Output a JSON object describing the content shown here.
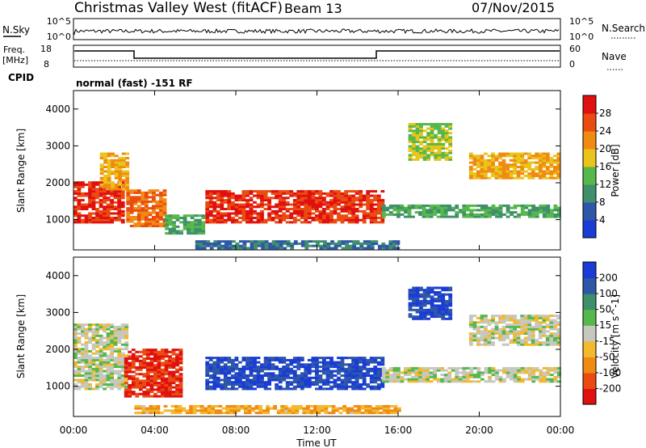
{
  "header": {
    "title": "Christmas Valley West (fitACF)",
    "beam": "Beam 13",
    "date": "07/Nov/2015"
  },
  "strips": {
    "nsky_label": "N.Sky",
    "nsearch_label": "N.Search",
    "nsky_ticks": [
      "10^5",
      "10^0"
    ],
    "freq_label": "Freq.",
    "freq_unit": "[MHz]",
    "freq_ticks": [
      "18",
      "8"
    ],
    "nave_label": "Nave",
    "nave_ticks": [
      "60",
      "0"
    ],
    "cpid_label": "CPID",
    "cpid_text": "normal (fast) -151 RF"
  },
  "colors": {
    "power": [
      "#1a3cd6",
      "#2e57a8",
      "#3f8f6b",
      "#56b84a",
      "#e9c41b",
      "#f08a12",
      "#ea4b10",
      "#e01010"
    ],
    "velocity": [
      "#e01010",
      "#ea4b10",
      "#f08a12",
      "#f3b92c",
      "#c7c7c0",
      "#56b84a",
      "#3f8f6b",
      "#2e57a8",
      "#1a3cd6"
    ]
  },
  "chart_data": [
    {
      "type": "heatmap",
      "panel": "power",
      "xlabel": "",
      "ylabel": "Slant Range [km]",
      "xlim_hours": [
        0,
        24
      ],
      "ylim": [
        180,
        4500
      ],
      "y_ticks": [
        "1000",
        "2000",
        "3000",
        "4000"
      ],
      "colorbar_label": "Power [dB]",
      "colorbar_ticks": [
        "4",
        "8",
        "12",
        "16",
        "20",
        "24",
        "28"
      ],
      "echo_regions": [
        {
          "t0": 0.0,
          "t1": 2.5,
          "r0": 900,
          "r1": 2000,
          "level": 28
        },
        {
          "t0": 1.3,
          "t1": 2.6,
          "r0": 1800,
          "r1": 2800,
          "level": 20
        },
        {
          "t0": 2.6,
          "t1": 4.5,
          "r0": 800,
          "r1": 1800,
          "level": 24
        },
        {
          "t0": 4.5,
          "t1": 6.3,
          "r0": 600,
          "r1": 1100,
          "level": 12
        },
        {
          "t0": 6.5,
          "t1": 15.2,
          "r0": 900,
          "r1": 1750,
          "level": 28
        },
        {
          "t0": 15.2,
          "t1": 24.0,
          "r0": 1050,
          "r1": 1400,
          "level": 12
        },
        {
          "t0": 16.5,
          "t1": 18.5,
          "r0": 2600,
          "r1": 3600,
          "level": 16
        },
        {
          "t0": 19.5,
          "t1": 23.9,
          "r0": 2100,
          "r1": 2800,
          "level": 20
        },
        {
          "t0": 6.0,
          "t1": 16.0,
          "r0": 200,
          "r1": 400,
          "level": 8
        }
      ]
    },
    {
      "type": "heatmap",
      "panel": "velocity",
      "xlabel": "Time UT",
      "ylabel": "Slant Range [km]",
      "xlim_hours": [
        0,
        24
      ],
      "ylim": [
        180,
        4500
      ],
      "x_ticks": [
        "00:00",
        "04:00",
        "08:00",
        "12:00",
        "16:00",
        "20:00",
        "00:00"
      ],
      "y_ticks": [
        "1000",
        "2000",
        "3000",
        "4000"
      ],
      "colorbar_label": "Velocity [m s^-1]",
      "colorbar_ticks": [
        "200",
        "100",
        "50",
        "15",
        "-15",
        "-50",
        "-100",
        "-200"
      ],
      "echo_regions": [
        {
          "t0": 0.0,
          "t1": 2.6,
          "r0": 900,
          "r1": 2700,
          "level": 0
        },
        {
          "t0": 2.5,
          "t1": 5.2,
          "r0": 700,
          "r1": 2000,
          "level": -200
        },
        {
          "t0": 6.5,
          "t1": 15.2,
          "r0": 900,
          "r1": 1800,
          "level": 200
        },
        {
          "t0": 15.2,
          "t1": 24.0,
          "r0": 1100,
          "r1": 1500,
          "level": 0
        },
        {
          "t0": 19.5,
          "t1": 23.9,
          "r0": 2100,
          "r1": 2900,
          "level": 0
        },
        {
          "t0": 3.0,
          "t1": 16.0,
          "r0": 250,
          "r1": 450,
          "level": -80
        },
        {
          "t0": 16.5,
          "t1": 18.5,
          "r0": 2800,
          "r1": 3700,
          "level": 200
        }
      ]
    }
  ]
}
